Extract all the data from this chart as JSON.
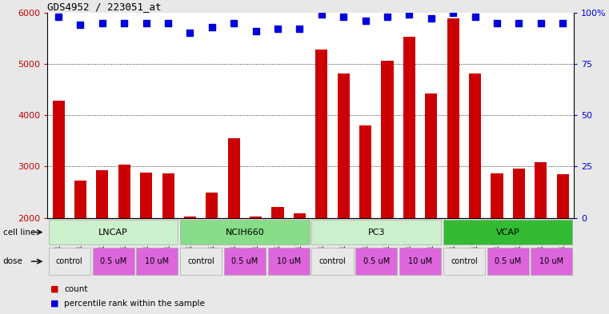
{
  "title": "GDS4952 / 223051_at",
  "samples": [
    "GSM1359772",
    "GSM1359773",
    "GSM1359774",
    "GSM1359775",
    "GSM1359776",
    "GSM1359777",
    "GSM1359760",
    "GSM1359761",
    "GSM1359762",
    "GSM1359763",
    "GSM1359764",
    "GSM1359765",
    "GSM1359778",
    "GSM1359779",
    "GSM1359780",
    "GSM1359781",
    "GSM1359782",
    "GSM1359783",
    "GSM1359766",
    "GSM1359767",
    "GSM1359768",
    "GSM1359769",
    "GSM1359770",
    "GSM1359771"
  ],
  "counts": [
    4280,
    2730,
    2930,
    3040,
    2880,
    2870,
    2020,
    2490,
    3560,
    2030,
    2220,
    2090,
    5280,
    4820,
    3800,
    5060,
    5530,
    4430,
    5880,
    4820,
    2870,
    2960,
    3090,
    2850
  ],
  "percentile_ranks": [
    98,
    94,
    95,
    95,
    95,
    95,
    90,
    93,
    95,
    91,
    92,
    92,
    99,
    98,
    96,
    98,
    99,
    97,
    100,
    98,
    95,
    95,
    95,
    95
  ],
  "cell_lines": [
    {
      "name": "LNCAP",
      "start": 0,
      "end": 6,
      "color": "#ccf0cc"
    },
    {
      "name": "NCIH660",
      "start": 6,
      "end": 12,
      "color": "#88dd88"
    },
    {
      "name": "PC3",
      "start": 12,
      "end": 18,
      "color": "#ccf0cc"
    },
    {
      "name": "VCAP",
      "start": 18,
      "end": 24,
      "color": "#33bb33"
    }
  ],
  "dose_blocks": [
    {
      "label": "control",
      "start": 0,
      "end": 2,
      "color": "#e8e8e8"
    },
    {
      "label": "0.5 uM",
      "start": 2,
      "end": 4,
      "color": "#dd66dd"
    },
    {
      "label": "10 uM",
      "start": 4,
      "end": 6,
      "color": "#dd66dd"
    },
    {
      "label": "control",
      "start": 6,
      "end": 8,
      "color": "#e8e8e8"
    },
    {
      "label": "0.5 uM",
      "start": 8,
      "end": 10,
      "color": "#dd66dd"
    },
    {
      "label": "10 uM",
      "start": 10,
      "end": 12,
      "color": "#dd66dd"
    },
    {
      "label": "control",
      "start": 12,
      "end": 14,
      "color": "#e8e8e8"
    },
    {
      "label": "0.5 uM",
      "start": 14,
      "end": 16,
      "color": "#dd66dd"
    },
    {
      "label": "10 uM",
      "start": 16,
      "end": 18,
      "color": "#dd66dd"
    },
    {
      "label": "control",
      "start": 18,
      "end": 20,
      "color": "#e8e8e8"
    },
    {
      "label": "0.5 uM",
      "start": 20,
      "end": 22,
      "color": "#dd66dd"
    },
    {
      "label": "10 uM",
      "start": 22,
      "end": 24,
      "color": "#dd66dd"
    }
  ],
  "ylim_left": [
    2000,
    6000
  ],
  "ylim_right": [
    0,
    100
  ],
  "yticks_left": [
    2000,
    3000,
    4000,
    5000,
    6000
  ],
  "yticks_right": [
    0,
    25,
    50,
    75,
    100
  ],
  "ytick_labels_right": [
    "0",
    "25",
    "50",
    "75",
    "100%"
  ],
  "bar_color": "#cc0000",
  "percentile_color": "#0000dd",
  "fig_bg_color": "#e8e8e8",
  "chart_bg_color": "#ffffff",
  "count_label": "count",
  "percentile_label": "percentile rank within the sample"
}
